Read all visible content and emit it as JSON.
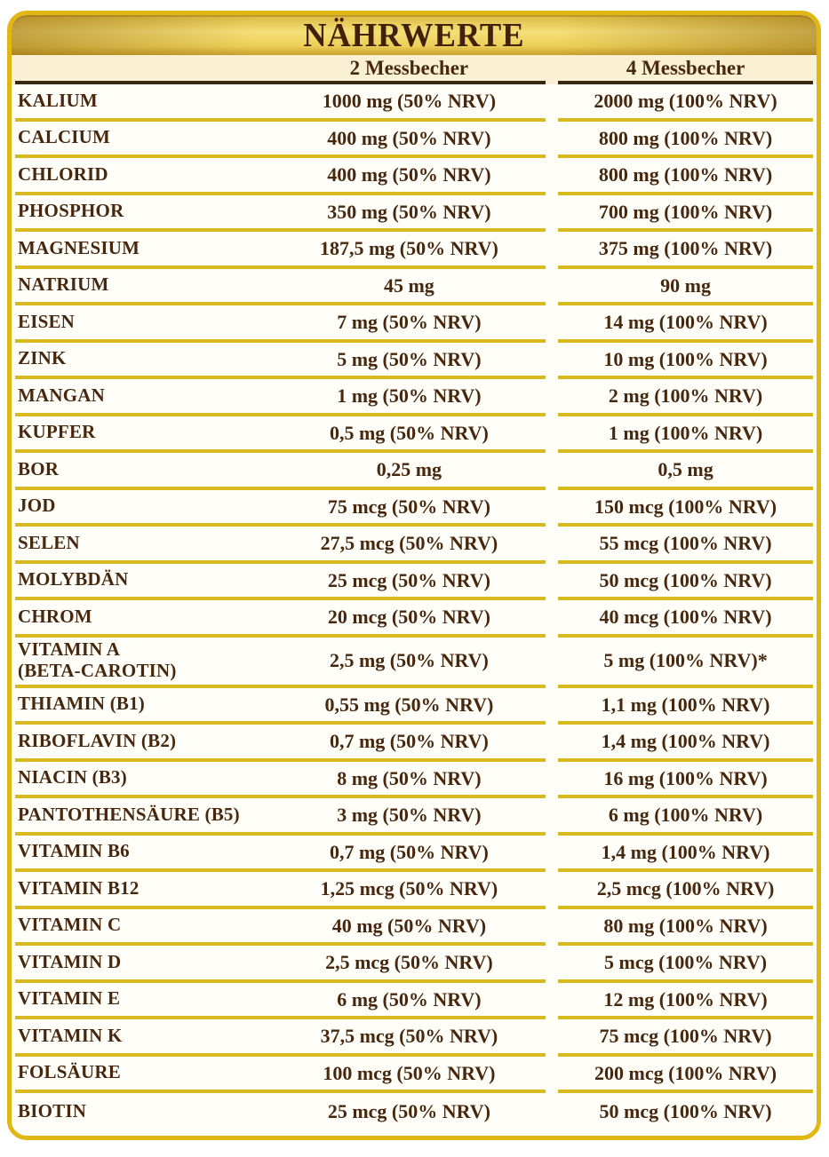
{
  "title": "NÄHRWERTE",
  "header": {
    "col2": "2 Messbecher",
    "col3": "4 Messbecher"
  },
  "rows": [
    {
      "name": "KALIUM",
      "dose2": "1000 mg (50% NRV)",
      "dose4": "2000 mg (100% NRV)"
    },
    {
      "name": "CALCIUM",
      "dose2": "400 mg (50% NRV)",
      "dose4": "800 mg (100% NRV)"
    },
    {
      "name": "CHLORID",
      "dose2": "400 mg (50% NRV)",
      "dose4": "800 mg (100% NRV)"
    },
    {
      "name": "PHOSPHOR",
      "dose2": "350 mg (50% NRV)",
      "dose4": "700 mg (100% NRV)"
    },
    {
      "name": "MAGNESIUM",
      "dose2": "187,5 mg (50% NRV)",
      "dose4": "375 mg (100% NRV)"
    },
    {
      "name": "NATRIUM",
      "dose2": "45 mg",
      "dose4": "90 mg"
    },
    {
      "name": "EISEN",
      "dose2": "7 mg (50% NRV)",
      "dose4": "14 mg (100% NRV)"
    },
    {
      "name": "ZINK",
      "dose2": "5 mg (50% NRV)",
      "dose4": "10 mg (100% NRV)"
    },
    {
      "name": "MANGAN",
      "dose2": "1 mg (50% NRV)",
      "dose4": "2 mg (100% NRV)"
    },
    {
      "name": "KUPFER",
      "dose2": "0,5 mg (50% NRV)",
      "dose4": "1 mg (100% NRV)"
    },
    {
      "name": "BOR",
      "dose2": "0,25 mg",
      "dose4": "0,5 mg"
    },
    {
      "name": "JOD",
      "dose2": "75 mcg (50% NRV)",
      "dose4": "150 mcg (100% NRV)"
    },
    {
      "name": "SELEN",
      "dose2": "27,5 mcg (50% NRV)",
      "dose4": "55 mcg (100% NRV)"
    },
    {
      "name": "MOLYBDÄN",
      "dose2": "25 mcg (50% NRV)",
      "dose4": "50 mcg (100% NRV)"
    },
    {
      "name": "CHROM",
      "dose2": "20 mcg (50% NRV)",
      "dose4": "40 mcg (100% NRV)"
    },
    {
      "name": "VITAMIN A",
      "name_line2": "(BETA-CAROTIN)",
      "dose2": "2,5 mg (50% NRV)",
      "dose4": "5 mg (100% NRV)*"
    },
    {
      "name": "THIAMIN (B1)",
      "dose2": "0,55 mg (50% NRV)",
      "dose4": "1,1 mg (100% NRV)"
    },
    {
      "name": "RIBOFLAVIN (B2)",
      "dose2": "0,7 mg (50% NRV)",
      "dose4": "1,4 mg (100% NRV)"
    },
    {
      "name": "NIACIN (B3)",
      "dose2": "8 mg (50% NRV)",
      "dose4": "16 mg (100% NRV)"
    },
    {
      "name": "PANTOTHENSÄURE (B5)",
      "dose2": "3 mg (50% NRV)",
      "dose4": "6 mg (100% NRV)"
    },
    {
      "name": "VITAMIN B6",
      "dose2": "0,7 mg (50% NRV)",
      "dose4": "1,4 mg (100% NRV)"
    },
    {
      "name": "VITAMIN B12",
      "dose2": "1,25 mcg (50% NRV)",
      "dose4": "2,5 mcg (100% NRV)"
    },
    {
      "name": "VITAMIN C",
      "dose2": "40 mg (50% NRV)",
      "dose4": "80 mg (100% NRV)"
    },
    {
      "name": "VITAMIN D",
      "dose2": "2,5 mcg (50% NRV)",
      "dose4": "5 mcg (100% NRV)"
    },
    {
      "name": "VITAMIN E",
      "dose2": "6 mg (50% NRV)",
      "dose4": "12 mg (100% NRV)"
    },
    {
      "name": "VITAMIN K",
      "dose2": "37,5 mcg (50% NRV)",
      "dose4": "75 mcg (100% NRV)"
    },
    {
      "name": "FOLSÄURE",
      "dose2": "100 mcg (50% NRV)",
      "dose4": "200 mcg (100% NRV)"
    },
    {
      "name": "BIOTIN",
      "dose2": "25 mcg (50% NRV)",
      "dose4": "50 mcg (100% NRV)"
    }
  ],
  "colors": {
    "gold_border": "#e2b714",
    "gold_line": "#d8ba1e",
    "dark_line": "#3a2712",
    "text": "#47280e",
    "title_text": "#42210a",
    "cream_bg": "#faf1d4",
    "row_bg": "#fffef9",
    "title_band_light": "#f4df78",
    "title_band_dark": "#c79f2c"
  }
}
